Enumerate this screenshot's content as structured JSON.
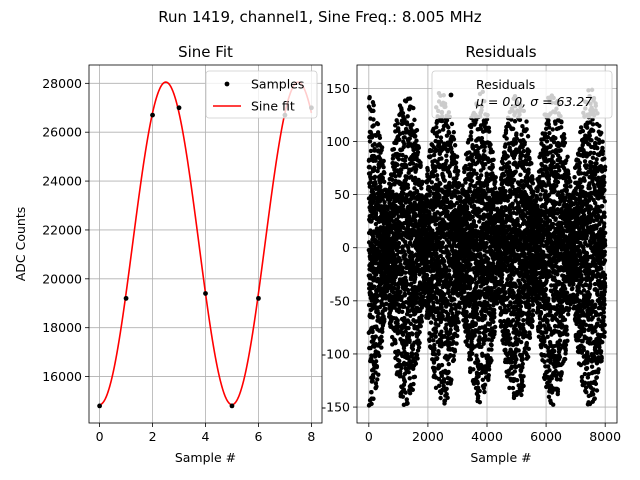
{
  "figure": {
    "suptitle": "Run 1419, channel1, Sine Freq.: 8.005 MHz"
  },
  "chart_data": [
    {
      "type": "line",
      "title": "Sine Fit",
      "xlabel": "Sample #",
      "ylabel": "ADC Counts",
      "xlim": [
        -0.4,
        8.4
      ],
      "ylim": [
        14100,
        28750
      ],
      "grid": true,
      "xticks": [
        0,
        2,
        4,
        6,
        8
      ],
      "yticks": [
        16000,
        18000,
        20000,
        22000,
        24000,
        26000,
        28000
      ],
      "legend_position": "top-right",
      "series": [
        {
          "name": "Samples",
          "kind": "scatter",
          "color": "#000000",
          "x": [
            0,
            1,
            2,
            3,
            4,
            5,
            6,
            7,
            8
          ],
          "y": [
            14800,
            19200,
            26700,
            27000,
            19400,
            14800,
            19200,
            26700,
            27000
          ]
        },
        {
          "name": "Sine fit",
          "kind": "line",
          "color": "#ff0000",
          "function": {
            "offset": 21450,
            "amplitude": 6600,
            "period": 5,
            "phase_x": 2.5
          }
        }
      ]
    },
    {
      "type": "scatter",
      "title": "Residuals",
      "xlabel": "Sample #",
      "ylabel": "",
      "xlim": [
        -400,
        8400
      ],
      "ylim": [
        -165,
        172
      ],
      "grid": true,
      "xticks": [
        0,
        2000,
        4000,
        6000,
        8000
      ],
      "yticks": [
        -150,
        -100,
        -50,
        0,
        50,
        100,
        150
      ],
      "legend_position": "top-right",
      "series": [
        {
          "name": "Residuals",
          "color": "#000000",
          "count": 8000,
          "envelope": {
            "period": 1250,
            "max_abs": 150,
            "min_abs": 40
          },
          "stats_label": "μ = 0.0, σ = 63.27"
        }
      ]
    }
  ]
}
